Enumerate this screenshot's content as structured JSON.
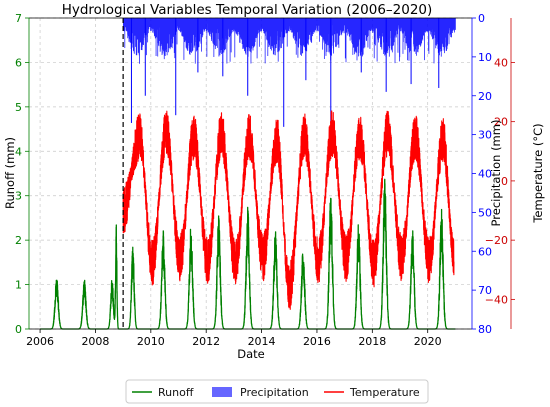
{
  "chart_data": {
    "type": "line",
    "title": "Hydrological Variables Temporal Variation (2006–2020)",
    "xlabel": "Date",
    "xlim": [
      2005.6,
      2021.6
    ],
    "x_ticks": [
      2006,
      2008,
      2010,
      2012,
      2014,
      2016,
      2018,
      2020
    ],
    "x_tick_labels": [
      "2006",
      "2008",
      "2010",
      "2012",
      "2014",
      "2016",
      "2018",
      "2020"
    ],
    "grid": true,
    "vertical_marker": {
      "x": 2009.0,
      "style": "dashed",
      "color": "#000000"
    },
    "axes": {
      "runoff": {
        "label": "Runoff (mm)",
        "side": "left",
        "ylim": [
          0,
          7
        ],
        "ticks": [
          0,
          1,
          2,
          3,
          4,
          5,
          6,
          7
        ],
        "tick_labels": [
          "0",
          "1",
          "2",
          "3",
          "4",
          "5",
          "6",
          "7"
        ],
        "color": "#008000"
      },
      "precipitation": {
        "label": "Precipitation (mm)",
        "side": "right",
        "inverted": true,
        "ylim": [
          0,
          80
        ],
        "ticks": [
          0,
          10,
          20,
          30,
          40,
          50,
          60,
          70,
          80
        ],
        "tick_labels": [
          "0",
          "10",
          "20",
          "30",
          "40",
          "50",
          "60",
          "70",
          "80"
        ],
        "color": "#0000ff"
      },
      "temperature": {
        "label": "Temperature (°C)",
        "side": "right-outer",
        "ylim": [
          -50,
          55
        ],
        "ticks": [
          -40,
          -20,
          0,
          20,
          40
        ],
        "tick_labels": [
          "−40",
          "−20",
          "0",
          "20",
          "40"
        ],
        "color": "#cc0000"
      }
    },
    "series": [
      {
        "name": "Runoff",
        "axis": "runoff",
        "style": "line",
        "color": "#008000",
        "baseline": 0.0,
        "peaks": [
          {
            "x": 2006.6,
            "y": 1.0,
            "width": 0.12
          },
          {
            "x": 2007.6,
            "y": 0.93,
            "width": 0.12
          },
          {
            "x": 2008.6,
            "y": 0.95,
            "width": 0.1
          },
          {
            "x": 2008.75,
            "y": 2.05,
            "width": 0.05
          },
          {
            "x": 2009.35,
            "y": 1.6,
            "width": 0.1
          },
          {
            "x": 2010.45,
            "y": 1.85,
            "width": 0.12
          },
          {
            "x": 2011.45,
            "y": 2.0,
            "width": 0.12
          },
          {
            "x": 2012.45,
            "y": 2.2,
            "width": 0.12
          },
          {
            "x": 2013.5,
            "y": 2.35,
            "width": 0.12
          },
          {
            "x": 2014.5,
            "y": 1.95,
            "width": 0.12
          },
          {
            "x": 2015.5,
            "y": 1.55,
            "width": 0.12
          },
          {
            "x": 2016.5,
            "y": 2.6,
            "width": 0.12
          },
          {
            "x": 2017.5,
            "y": 2.05,
            "width": 0.12
          },
          {
            "x": 2018.45,
            "y": 2.9,
            "width": 0.12
          },
          {
            "x": 2019.45,
            "y": 1.9,
            "width": 0.12
          },
          {
            "x": 2020.5,
            "y": 2.3,
            "width": 0.12
          }
        ]
      },
      {
        "name": "Precipitation",
        "axis": "precipitation",
        "style": "bar",
        "color": "#0000ff",
        "start": 2009.0,
        "end": 2021.0,
        "typical_max": 10,
        "spikes": [
          {
            "x": 2009.3,
            "y": 27
          },
          {
            "x": 2009.8,
            "y": 20
          },
          {
            "x": 2010.9,
            "y": 25
          },
          {
            "x": 2011.7,
            "y": 14
          },
          {
            "x": 2012.6,
            "y": 15
          },
          {
            "x": 2013.5,
            "y": 20
          },
          {
            "x": 2014.8,
            "y": 28
          },
          {
            "x": 2015.6,
            "y": 16
          },
          {
            "x": 2016.5,
            "y": 27
          },
          {
            "x": 2017.6,
            "y": 14
          },
          {
            "x": 2018.5,
            "y": 19
          },
          {
            "x": 2019.4,
            "y": 17
          },
          {
            "x": 2020.4,
            "y": 18
          }
        ]
      },
      {
        "name": "Temperature",
        "axis": "temperature",
        "style": "line",
        "color": "#ff0000",
        "start": 2009.0,
        "end": 2020.95,
        "seasonal_mean": -6,
        "seasonal_amplitude": 22,
        "summer_peaks": [
          {
            "x": 2009.6,
            "y": 15
          },
          {
            "x": 2010.55,
            "y": 17
          },
          {
            "x": 2011.55,
            "y": 15
          },
          {
            "x": 2012.55,
            "y": 16
          },
          {
            "x": 2013.55,
            "y": 15
          },
          {
            "x": 2014.55,
            "y": 14
          },
          {
            "x": 2015.55,
            "y": 15
          },
          {
            "x": 2016.55,
            "y": 16
          },
          {
            "x": 2017.55,
            "y": 15
          },
          {
            "x": 2018.55,
            "y": 16
          },
          {
            "x": 2019.55,
            "y": 15
          },
          {
            "x": 2020.55,
            "y": 14
          }
        ],
        "winter_troughs": [
          {
            "x": 2010.05,
            "y": -28
          },
          {
            "x": 2011.05,
            "y": -26
          },
          {
            "x": 2012.05,
            "y": -27
          },
          {
            "x": 2013.05,
            "y": -28
          },
          {
            "x": 2014.05,
            "y": -26
          },
          {
            "x": 2015.0,
            "y": -36
          },
          {
            "x": 2016.05,
            "y": -27
          },
          {
            "x": 2017.05,
            "y": -26
          },
          {
            "x": 2018.05,
            "y": -28
          },
          {
            "x": 2019.05,
            "y": -26
          },
          {
            "x": 2020.05,
            "y": -27
          }
        ],
        "end_value": -25
      }
    ],
    "legend": {
      "placement": "bottom-center",
      "items": [
        {
          "label": "Runoff",
          "symbol": "line",
          "color": "#008000"
        },
        {
          "label": "Precipitation",
          "symbol": "patch",
          "color": "#6666ff"
        },
        {
          "label": "Temperature",
          "symbol": "line",
          "color": "#ff0000"
        }
      ]
    }
  }
}
